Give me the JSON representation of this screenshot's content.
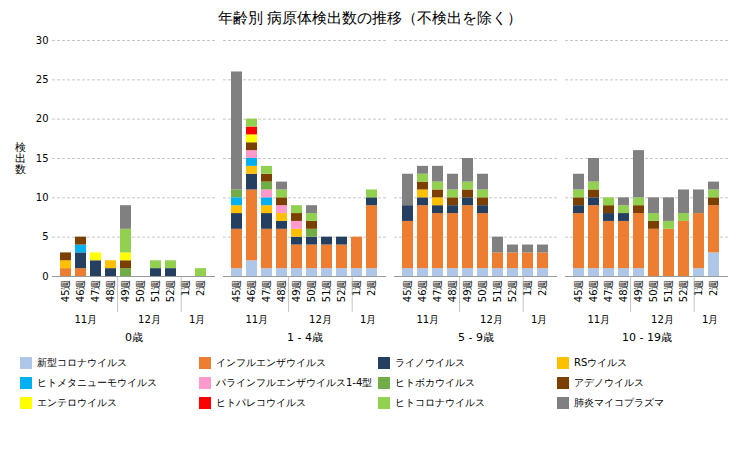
{
  "title": "年齢別 病原体検出数の推移（不検出を除く）",
  "legend": "bottom",
  "chart_data": [
    {
      "type": "bar",
      "stacked": true,
      "xlabel": "0歳",
      "ylabel": "検\n出\n数",
      "categories": [
        "45週",
        "46週",
        "47週",
        "48週",
        "49週",
        "50週",
        "51週",
        "52週",
        "1週",
        "2週"
      ],
      "annotations": [
        {
          "text": "11月",
          "from": "45週",
          "to": "48週"
        },
        {
          "text": "12月",
          "from": "49週",
          "to": "52週"
        },
        {
          "text": "1月",
          "from": "1週",
          "to": "2週"
        }
      ],
      "ylim": [
        0,
        30
      ],
      "yticks": [
        0,
        5,
        10,
        15,
        20,
        25,
        30
      ],
      "grid": true,
      "tick_labels": true,
      "series": [
        {
          "name": "新型コロナウイルス",
          "color": "#aec6e8",
          "values": [
            0,
            0,
            0,
            0,
            0,
            0,
            0,
            0,
            0,
            0
          ]
        },
        {
          "name": "インフルエンザウイルス",
          "color": "#ed7d31",
          "values": [
            1,
            1,
            0,
            0,
            0,
            0,
            0,
            0,
            0,
            0
          ]
        },
        {
          "name": "ライノウイルス",
          "color": "#243f60",
          "values": [
            0,
            2,
            2,
            1,
            0,
            0,
            1,
            1,
            0,
            0
          ]
        },
        {
          "name": "RSウイルス",
          "color": "#ffc000",
          "values": [
            1,
            0,
            0,
            1,
            0,
            0,
            0,
            0,
            0,
            0
          ]
        },
        {
          "name": "ヒトメタニューモウイルス",
          "color": "#00b0f0",
          "values": [
            0,
            1,
            0,
            0,
            0,
            0,
            0,
            0,
            0,
            0
          ]
        },
        {
          "name": "パラインフルエンザウイルス1-4型",
          "color": "#ff99cc",
          "values": [
            0,
            0,
            0,
            0,
            0,
            0,
            0,
            0,
            0,
            0
          ]
        },
        {
          "name": "ヒトボカウイルス",
          "color": "#70ad47",
          "values": [
            0,
            0,
            0,
            0,
            1,
            0,
            0,
            0,
            0,
            0
          ]
        },
        {
          "name": "アデノウイルス",
          "color": "#7b3f00",
          "values": [
            1,
            1,
            0,
            0,
            1,
            0,
            0,
            0,
            0,
            0
          ]
        },
        {
          "name": "エンテロウイルス",
          "color": "#ffff00",
          "values": [
            0,
            0,
            1,
            0,
            1,
            0,
            0,
            0,
            0,
            0
          ]
        },
        {
          "name": "ヒトパレコウイルス",
          "color": "#ff0000",
          "values": [
            0,
            0,
            0,
            0,
            0,
            0,
            0,
            0,
            0,
            0
          ]
        },
        {
          "name": "ヒトコロナウイルス",
          "color": "#92d050",
          "values": [
            0,
            0,
            0,
            0,
            3,
            0,
            1,
            1,
            0,
            1
          ]
        },
        {
          "name": "肺炎マイコプラズマ",
          "color": "#808080",
          "values": [
            0,
            0,
            0,
            0,
            3,
            0,
            0,
            0,
            0,
            0
          ]
        }
      ]
    },
    {
      "type": "bar",
      "stacked": true,
      "xlabel": "1 - 4歳",
      "categories": [
        "45週",
        "46週",
        "47週",
        "48週",
        "49週",
        "50週",
        "51週",
        "52週",
        "1週",
        "2週"
      ],
      "annotations": [
        {
          "text": "11月",
          "from": "45週",
          "to": "48週"
        },
        {
          "text": "12月",
          "from": "49週",
          "to": "52週"
        },
        {
          "text": "1月",
          "from": "1週",
          "to": "2週"
        }
      ],
      "ylim": [
        0,
        30
      ],
      "yticks": [
        0,
        5,
        10,
        15,
        20,
        25,
        30
      ],
      "grid": true,
      "tick_labels": "x",
      "series": [
        {
          "name": "新型コロナウイルス",
          "color": "#aec6e8",
          "values": [
            1,
            2,
            1,
            1,
            1,
            1,
            1,
            1,
            1,
            1
          ]
        },
        {
          "name": "インフルエンザウイルス",
          "color": "#ed7d31",
          "values": [
            5,
            9,
            5,
            5,
            3,
            3,
            3,
            3,
            4,
            8
          ]
        },
        {
          "name": "ライノウイルス",
          "color": "#243f60",
          "values": [
            2,
            2,
            2,
            1,
            1,
            1,
            1,
            1,
            0,
            1
          ]
        },
        {
          "name": "RSウイルス",
          "color": "#ffc000",
          "values": [
            1,
            1,
            1,
            1,
            1,
            0,
            0,
            0,
            0,
            0
          ]
        },
        {
          "name": "ヒトメタニューモウイルス",
          "color": "#00b0f0",
          "values": [
            1,
            1,
            1,
            0,
            0,
            0,
            0,
            0,
            0,
            0
          ]
        },
        {
          "name": "パラインフルエンザウイルス1-4型",
          "color": "#ff99cc",
          "values": [
            0,
            1,
            1,
            1,
            1,
            0,
            0,
            0,
            0,
            0
          ]
        },
        {
          "name": "ヒトボカウイルス",
          "color": "#70ad47",
          "values": [
            1,
            0,
            1,
            0,
            0,
            1,
            0,
            0,
            0,
            0
          ]
        },
        {
          "name": "アデノウイルス",
          "color": "#7b3f00",
          "values": [
            0,
            1,
            1,
            1,
            1,
            1,
            0,
            0,
            0,
            0
          ]
        },
        {
          "name": "エンテロウイルス",
          "color": "#ffff00",
          "values": [
            0,
            1,
            0,
            0,
            0,
            0,
            0,
            0,
            0,
            0
          ]
        },
        {
          "name": "ヒトパレコウイルス",
          "color": "#ff0000",
          "values": [
            0,
            1,
            0,
            0,
            0,
            0,
            0,
            0,
            0,
            0
          ]
        },
        {
          "name": "ヒトコロナウイルス",
          "color": "#92d050",
          "values": [
            0,
            1,
            1,
            1,
            1,
            1,
            0,
            0,
            0,
            1
          ]
        },
        {
          "name": "肺炎マイコプラズマ",
          "color": "#808080",
          "values": [
            15,
            0,
            0,
            1,
            0,
            1,
            0,
            0,
            0,
            0
          ]
        }
      ]
    },
    {
      "type": "bar",
      "stacked": true,
      "xlabel": "5 - 9歳",
      "categories": [
        "45週",
        "46週",
        "47週",
        "48週",
        "49週",
        "50週",
        "51週",
        "52週",
        "1週",
        "2週"
      ],
      "annotations": [
        {
          "text": "11月",
          "from": "45週",
          "to": "48週"
        },
        {
          "text": "12月",
          "from": "49週",
          "to": "52週"
        },
        {
          "text": "1月",
          "from": "1週",
          "to": "2週"
        }
      ],
      "ylim": [
        0,
        30
      ],
      "yticks": [
        0,
        5,
        10,
        15,
        20,
        25,
        30
      ],
      "grid": true,
      "tick_labels": "x",
      "series": [
        {
          "name": "新型コロナウイルス",
          "color": "#aec6e8",
          "values": [
            1,
            1,
            1,
            1,
            1,
            1,
            1,
            1,
            1,
            1
          ]
        },
        {
          "name": "インフルエンザウイルス",
          "color": "#ed7d31",
          "values": [
            6,
            8,
            7,
            7,
            8,
            7,
            2,
            2,
            2,
            2
          ]
        },
        {
          "name": "ライノウイルス",
          "color": "#243f60",
          "values": [
            2,
            1,
            1,
            1,
            1,
            1,
            0,
            0,
            0,
            0
          ]
        },
        {
          "name": "RSウイルス",
          "color": "#ffc000",
          "values": [
            0,
            1,
            1,
            0,
            0,
            0,
            0,
            0,
            0,
            0
          ]
        },
        {
          "name": "ヒトメタニューモウイルス",
          "color": "#00b0f0",
          "values": [
            0,
            0,
            0,
            0,
            0,
            0,
            0,
            0,
            0,
            0
          ]
        },
        {
          "name": "パラインフルエンザウイルス1-4型",
          "color": "#ff99cc",
          "values": [
            0,
            0,
            0,
            0,
            0,
            0,
            0,
            0,
            0,
            0
          ]
        },
        {
          "name": "ヒトボカウイルス",
          "color": "#70ad47",
          "values": [
            0,
            0,
            0,
            0,
            0,
            0,
            0,
            0,
            0,
            0
          ]
        },
        {
          "name": "アデノウイルス",
          "color": "#7b3f00",
          "values": [
            0,
            1,
            1,
            1,
            1,
            1,
            0,
            0,
            0,
            0
          ]
        },
        {
          "name": "エンテロウイルス",
          "color": "#ffff00",
          "values": [
            0,
            0,
            0,
            0,
            0,
            0,
            0,
            0,
            0,
            0
          ]
        },
        {
          "name": "ヒトパレコウイルス",
          "color": "#ff0000",
          "values": [
            0,
            0,
            0,
            0,
            0,
            0,
            0,
            0,
            0,
            0
          ]
        },
        {
          "name": "ヒトコロナウイルス",
          "color": "#92d050",
          "values": [
            0,
            1,
            1,
            1,
            1,
            1,
            0,
            0,
            0,
            0
          ]
        },
        {
          "name": "肺炎マイコプラズマ",
          "color": "#808080",
          "values": [
            4,
            1,
            2,
            2,
            3,
            2,
            2,
            1,
            1,
            1
          ]
        }
      ]
    },
    {
      "type": "bar",
      "stacked": true,
      "xlabel": "10 - 19歳",
      "categories": [
        "45週",
        "46週",
        "47週",
        "48週",
        "49週",
        "50週",
        "51週",
        "52週",
        "1週",
        "2週"
      ],
      "annotations": [
        {
          "text": "11月",
          "from": "45週",
          "to": "48週"
        },
        {
          "text": "12月",
          "from": "49週",
          "to": "52週"
        },
        {
          "text": "1月",
          "from": "1週",
          "to": "2週"
        }
      ],
      "ylim": [
        0,
        30
      ],
      "yticks": [
        0,
        5,
        10,
        15,
        20,
        25,
        30
      ],
      "grid": true,
      "tick_labels": "x",
      "series": [
        {
          "name": "新型コロナウイルス",
          "color": "#aec6e8",
          "values": [
            1,
            1,
            1,
            1,
            1,
            0,
            0,
            0,
            1,
            3
          ]
        },
        {
          "name": "インフルエンザウイルス",
          "color": "#ed7d31",
          "values": [
            7,
            8,
            6,
            6,
            7,
            6,
            6,
            7,
            7,
            6
          ]
        },
        {
          "name": "ライノウイルス",
          "color": "#243f60",
          "values": [
            1,
            1,
            1,
            1,
            0,
            0,
            0,
            0,
            0,
            0
          ]
        },
        {
          "name": "RSウイルス",
          "color": "#ffc000",
          "values": [
            0,
            0,
            0,
            0,
            0,
            0,
            0,
            0,
            0,
            0
          ]
        },
        {
          "name": "ヒトメタニューモウイルス",
          "color": "#00b0f0",
          "values": [
            0,
            0,
            0,
            0,
            0,
            0,
            0,
            0,
            0,
            0
          ]
        },
        {
          "name": "パラインフルエンザウイルス1-4型",
          "color": "#ff99cc",
          "values": [
            0,
            0,
            0,
            0,
            0,
            0,
            0,
            0,
            0,
            0
          ]
        },
        {
          "name": "ヒトボカウイルス",
          "color": "#70ad47",
          "values": [
            0,
            0,
            0,
            0,
            0,
            0,
            0,
            0,
            0,
            0
          ]
        },
        {
          "name": "アデノウイルス",
          "color": "#7b3f00",
          "values": [
            1,
            1,
            1,
            0,
            1,
            1,
            0,
            0,
            0,
            1
          ]
        },
        {
          "name": "エンテロウイルス",
          "color": "#ffff00",
          "values": [
            0,
            0,
            0,
            0,
            0,
            0,
            0,
            0,
            0,
            0
          ]
        },
        {
          "name": "ヒトパレコウイルス",
          "color": "#ff0000",
          "values": [
            0,
            0,
            0,
            0,
            0,
            0,
            0,
            0,
            0,
            0
          ]
        },
        {
          "name": "ヒトコロナウイルス",
          "color": "#92d050",
          "values": [
            1,
            1,
            1,
            1,
            1,
            1,
            1,
            1,
            0,
            1
          ]
        },
        {
          "name": "肺炎マイコプラズマ",
          "color": "#808080",
          "values": [
            2,
            3,
            0,
            1,
            6,
            2,
            3,
            3,
            3,
            1
          ]
        }
      ]
    }
  ]
}
